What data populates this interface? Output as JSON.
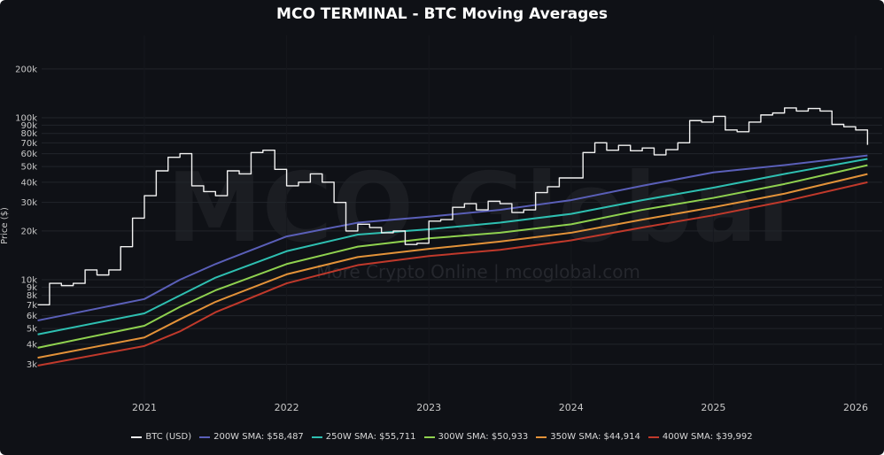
{
  "chart_data": {
    "type": "line",
    "title": "MCO TERMINAL - BTC Moving Averages",
    "xlabel": "",
    "ylabel": "Price ($)",
    "y_scale": "log",
    "ylim": [
      2500,
      250000
    ],
    "xlim": [
      "2020-04",
      "2026-02"
    ],
    "grid": true,
    "legend_position": "bottom",
    "x_ticks": [
      "2021",
      "2022",
      "2023",
      "2024",
      "2025",
      "2026"
    ],
    "y_ticks": [
      {
        "value": 3000,
        "label": "3k"
      },
      {
        "value": 4000,
        "label": "4k"
      },
      {
        "value": 5000,
        "label": "5k"
      },
      {
        "value": 6000,
        "label": "6k"
      },
      {
        "value": 7000,
        "label": "7k"
      },
      {
        "value": 8000,
        "label": "8k"
      },
      {
        "value": 9000,
        "label": "9k"
      },
      {
        "value": 10000,
        "label": "10k"
      },
      {
        "value": 20000,
        "label": "20k"
      },
      {
        "value": 30000,
        "label": "30k"
      },
      {
        "value": 40000,
        "label": "40k"
      },
      {
        "value": 50000,
        "label": "50k"
      },
      {
        "value": 60000,
        "label": "60k"
      },
      {
        "value": 70000,
        "label": "70k"
      },
      {
        "value": 80000,
        "label": "80k"
      },
      {
        "value": 90000,
        "label": "90k"
      },
      {
        "value": 100000,
        "label": "100k"
      },
      {
        "value": 200000,
        "label": "200k"
      }
    ],
    "watermark": {
      "main": "MCO Global",
      "sub": "More Crypto Online  |  mcoglobal.com"
    },
    "series": [
      {
        "name": "BTC (USD)",
        "color": "#f2f2f2",
        "x": [
          "2020-04",
          "2020-05",
          "2020-06",
          "2020-07",
          "2020-08",
          "2020-09",
          "2020-10",
          "2020-11",
          "2020-12",
          "2021-01",
          "2021-02",
          "2021-03",
          "2021-04",
          "2021-05",
          "2021-06",
          "2021-07",
          "2021-08",
          "2021-09",
          "2021-10",
          "2021-11",
          "2021-12",
          "2022-01",
          "2022-02",
          "2022-03",
          "2022-04",
          "2022-05",
          "2022-06",
          "2022-07",
          "2022-08",
          "2022-09",
          "2022-10",
          "2022-11",
          "2022-12",
          "2023-01",
          "2023-02",
          "2023-03",
          "2023-04",
          "2023-05",
          "2023-06",
          "2023-07",
          "2023-08",
          "2023-09",
          "2023-10",
          "2023-11",
          "2023-12",
          "2024-01",
          "2024-02",
          "2024-03",
          "2024-04",
          "2024-05",
          "2024-06",
          "2024-07",
          "2024-08",
          "2024-09",
          "2024-10",
          "2024-11",
          "2024-12",
          "2025-01",
          "2025-02",
          "2025-03",
          "2025-04",
          "2025-05",
          "2025-06",
          "2025-07",
          "2025-08",
          "2025-09",
          "2025-10",
          "2025-11",
          "2025-12",
          "2026-01",
          "2026-02"
        ],
        "values": [
          7000,
          9500,
          9200,
          9500,
          11500,
          10700,
          11500,
          16000,
          24000,
          33000,
          47000,
          57000,
          60000,
          38000,
          35000,
          33000,
          47000,
          45000,
          61000,
          63000,
          48000,
          38000,
          40000,
          45000,
          40000,
          30000,
          20000,
          22000,
          21000,
          19500,
          20000,
          16500,
          16800,
          23000,
          23500,
          28000,
          29500,
          27000,
          30500,
          29500,
          26000,
          27000,
          34500,
          37500,
          42500,
          42500,
          61000,
          70000,
          63000,
          67500,
          62500,
          65000,
          59000,
          63500,
          70000,
          96000,
          94000,
          102000,
          84000,
          82000,
          94000,
          104000,
          107000,
          115000,
          110000,
          114000,
          110000,
          91000,
          88000,
          84000,
          68000
        ]
      },
      {
        "name": "200W SMA: $58,487",
        "color": "#5a5fb8",
        "x": [
          "2020-04",
          "2021-01",
          "2021-04",
          "2021-07",
          "2022-01",
          "2022-07",
          "2023-01",
          "2023-07",
          "2024-01",
          "2024-07",
          "2025-01",
          "2025-07",
          "2026-02"
        ],
        "values": [
          5600,
          7600,
          10000,
          12500,
          18500,
          22500,
          24500,
          27000,
          31000,
          38000,
          46000,
          51000,
          58487
        ]
      },
      {
        "name": "250W SMA: $55,711",
        "color": "#2ebfb1",
        "x": [
          "2020-04",
          "2021-01",
          "2021-04",
          "2021-07",
          "2022-01",
          "2022-07",
          "2023-01",
          "2023-07",
          "2024-01",
          "2024-07",
          "2025-01",
          "2025-07",
          "2026-02"
        ],
        "values": [
          4600,
          6200,
          8000,
          10300,
          15000,
          19000,
          20500,
          22500,
          25500,
          31000,
          37000,
          45000,
          55711
        ]
      },
      {
        "name": "300W SMA: $50,933",
        "color": "#8fd14f",
        "x": [
          "2020-04",
          "2021-01",
          "2021-04",
          "2021-07",
          "2022-01",
          "2022-07",
          "2023-01",
          "2023-07",
          "2024-01",
          "2024-07",
          "2025-01",
          "2025-07",
          "2026-02"
        ],
        "values": [
          3800,
          5200,
          6800,
          8600,
          12500,
          16000,
          18000,
          19500,
          22000,
          27000,
          32000,
          39000,
          50933
        ]
      },
      {
        "name": "350W SMA: $44,914",
        "color": "#e39239",
        "x": [
          "2020-04",
          "2021-01",
          "2021-04",
          "2021-07",
          "2022-01",
          "2022-07",
          "2023-01",
          "2023-07",
          "2024-01",
          "2024-07",
          "2025-01",
          "2025-07",
          "2026-02"
        ],
        "values": [
          3300,
          4400,
          5700,
          7300,
          10800,
          13800,
          15500,
          17200,
          19500,
          23500,
          28000,
          34000,
          44914
        ]
      },
      {
        "name": "400W SMA: $39,992",
        "color": "#c0392b",
        "x": [
          "2020-04",
          "2021-01",
          "2021-04",
          "2021-07",
          "2022-01",
          "2022-07",
          "2023-01",
          "2023-07",
          "2024-01",
          "2024-07",
          "2025-01",
          "2025-07",
          "2026-02"
        ],
        "values": [
          2950,
          3900,
          4800,
          6300,
          9500,
          12300,
          14000,
          15300,
          17500,
          21000,
          25000,
          30500,
          39992
        ]
      }
    ]
  }
}
